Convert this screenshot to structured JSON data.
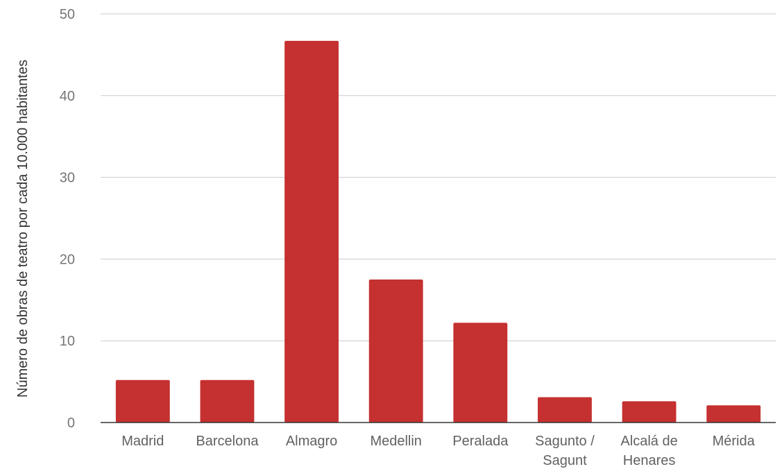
{
  "chart_data": {
    "type": "bar",
    "title": "",
    "xlabel": "",
    "ylabel": "Número de obras de teatro por cada 10.000 habitantes",
    "categories": [
      [
        "Madrid"
      ],
      [
        "Barcelona"
      ],
      [
        "Almagro"
      ],
      [
        "Medellin"
      ],
      [
        "Peralada"
      ],
      [
        "Sagunto /",
        "Sagunt"
      ],
      [
        "Alcalá de",
        "Henares"
      ],
      [
        "Mérida"
      ]
    ],
    "values": [
      5.2,
      5.2,
      46.7,
      17.5,
      12.2,
      3.1,
      2.6,
      2.1
    ],
    "ylim": [
      0,
      50
    ],
    "yticks": [
      0,
      10,
      20,
      30,
      40,
      50
    ],
    "grid": true,
    "legend": "none",
    "bar_color": "#c53030"
  }
}
